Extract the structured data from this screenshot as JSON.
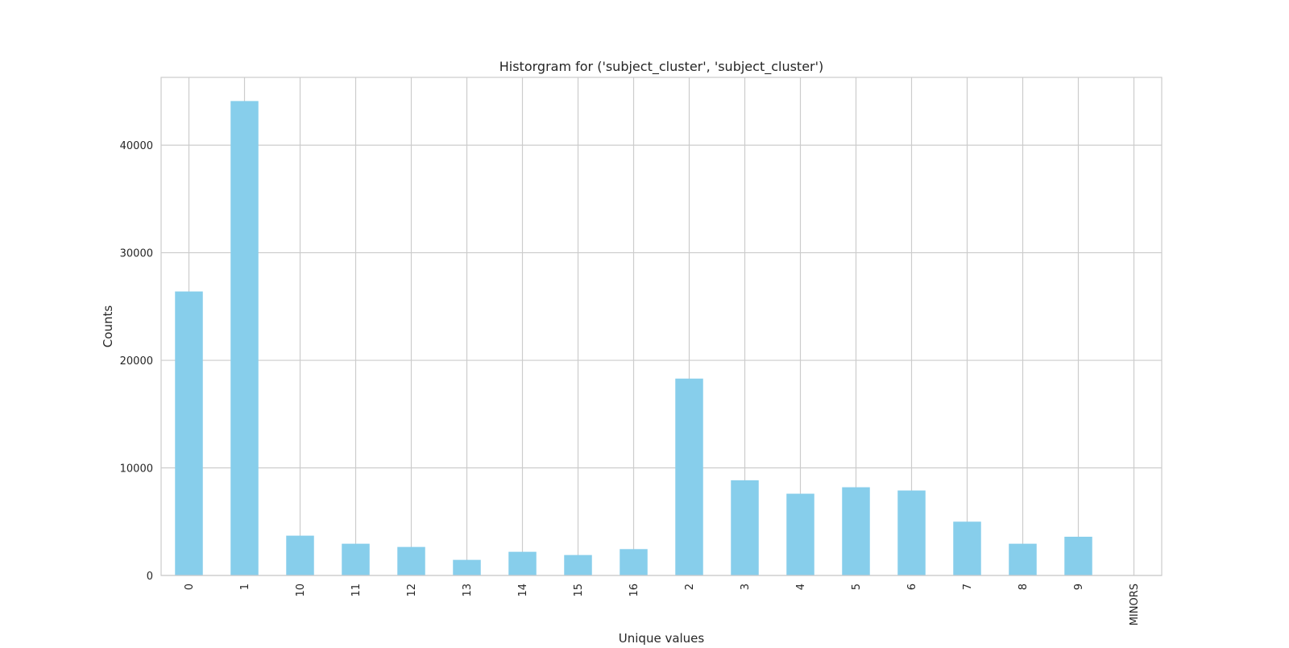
{
  "chart_data": {
    "type": "bar",
    "title": "Historgram for ('subject_cluster', 'subject_cluster')",
    "xlabel": "Unique values",
    "ylabel": "Counts",
    "categories": [
      "0",
      "1",
      "10",
      "11",
      "12",
      "13",
      "14",
      "15",
      "16",
      "2",
      "3",
      "4",
      "5",
      "6",
      "7",
      "8",
      "9",
      "MINORS"
    ],
    "values": [
      26400,
      44100,
      3700,
      2950,
      2650,
      1450,
      2200,
      1900,
      2450,
      18300,
      8850,
      7600,
      8200,
      7900,
      5000,
      2950,
      3600,
      0
    ],
    "ylim": [
      0,
      46300
    ],
    "yticks": [
      0,
      10000,
      20000,
      30000,
      40000
    ],
    "grid": true,
    "legend": "none",
    "colors": {
      "bar": "#87ceeb",
      "grid": "#cccccc",
      "frame": "#cccccc"
    }
  }
}
